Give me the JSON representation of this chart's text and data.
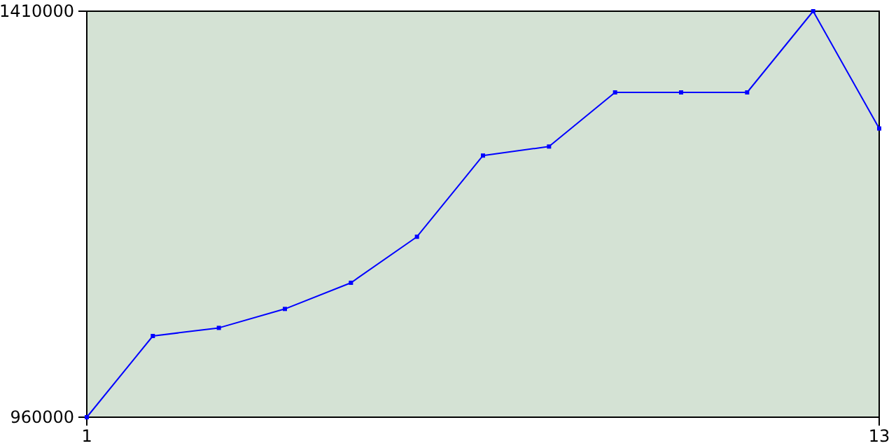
{
  "chart_data": {
    "type": "line",
    "x": [
      1,
      2,
      3,
      4,
      5,
      6,
      7,
      8,
      9,
      10,
      11,
      12,
      13
    ],
    "series": [
      {
        "color": "#0000ff",
        "values": [
          960000,
          1050000,
          1059000,
          1080000,
          1109000,
          1160000,
          1250000,
          1260000,
          1320000,
          1320000,
          1320000,
          1410000,
          1280000
        ]
      }
    ],
    "xlim": [
      1,
      13
    ],
    "xticks": [
      1,
      13
    ],
    "ylim": [
      960000,
      1410000
    ],
    "yticks": [
      960000,
      1410000
    ],
    "marker": "square",
    "grid": false
  }
}
